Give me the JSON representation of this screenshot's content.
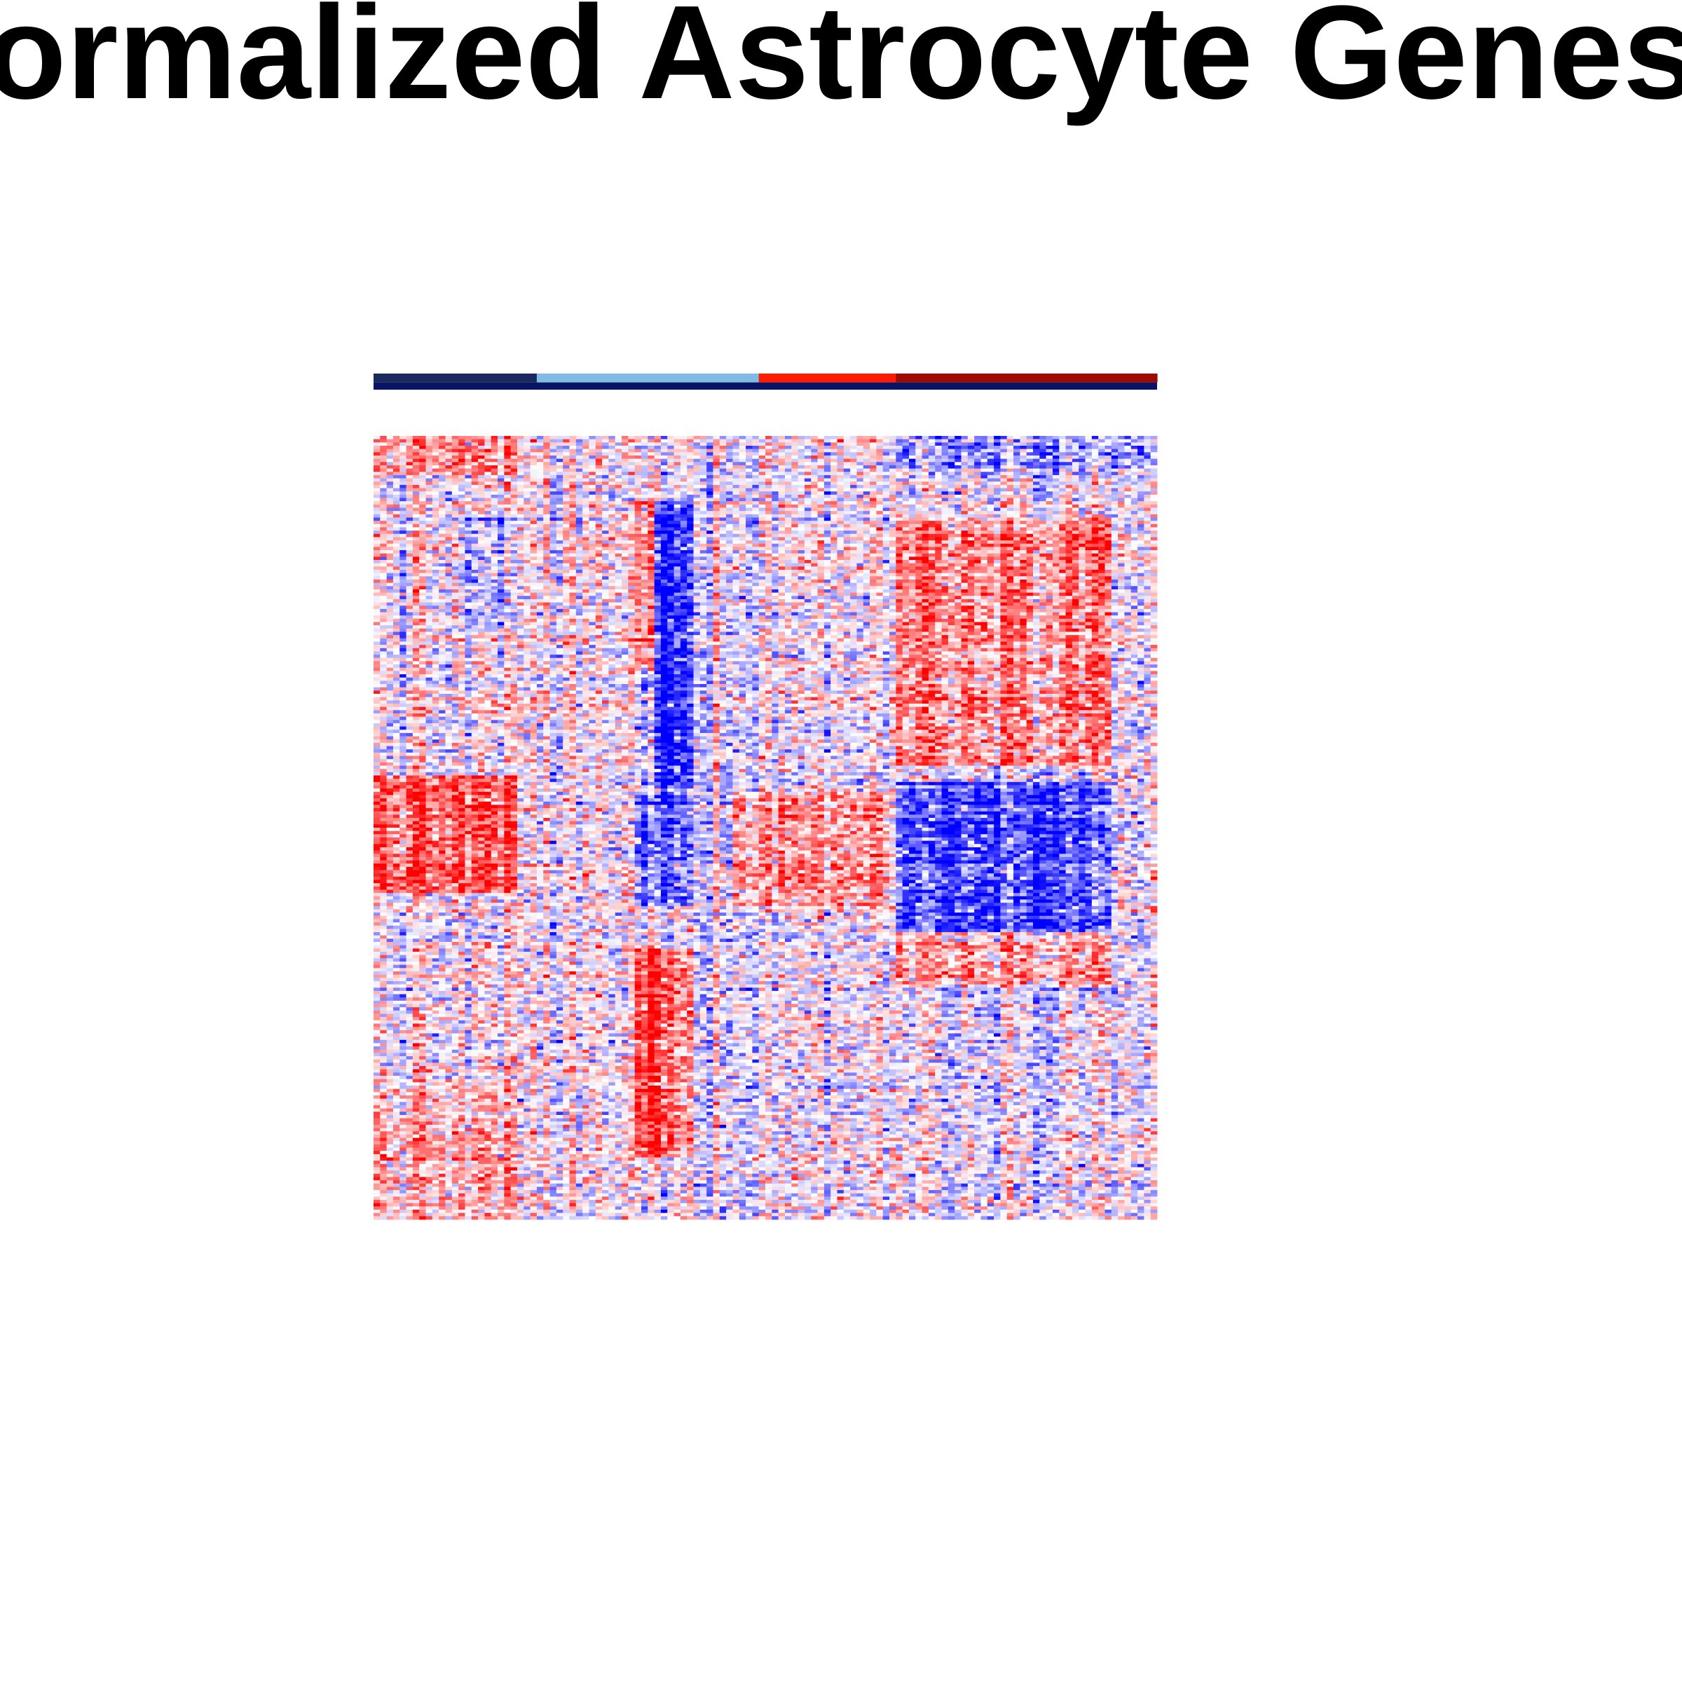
{
  "chart_data": {
    "type": "heatmap",
    "title": "Normalized Astrocyte Genes",
    "title_visible_text": "ormalized Astrocyte Genes",
    "xlabel": "",
    "ylabel": "",
    "grid": false,
    "legend": "none",
    "color_scale": {
      "low": "#0000ff",
      "mid": "#ffffff",
      "high": "#ff0000"
    },
    "n_columns": 120,
    "n_rows": 240,
    "column_groups": [
      {
        "color": "#1a2a5e",
        "columns": 25
      },
      {
        "color": "#7fbbe3",
        "columns": 34
      },
      {
        "color": "#ff1a00",
        "columns": 21
      },
      {
        "color": "#9e0a00",
        "columns": 40
      }
    ],
    "column_group_bottom_color": "#0a1466",
    "pattern_note": "Column blocks: cols 0-22 red-leaning in upper and middle rows; cols 40-48 strongly blue in upper half and red in lower half; cols 80-110 red-leaning in upper rows and blue-leaning in middle rows."
  }
}
